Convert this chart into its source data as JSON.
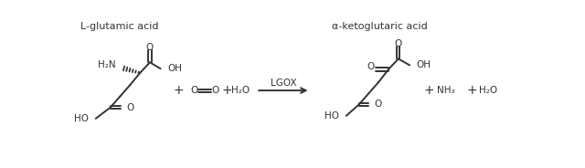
{
  "bg_color": "#ffffff",
  "text_color": "#333333",
  "title_left": "L-glutamic acid",
  "title_right": "α-ketoglutaric acid",
  "enzyme": "LGOX",
  "figsize": [
    6.4,
    1.84
  ],
  "dpi": 100
}
